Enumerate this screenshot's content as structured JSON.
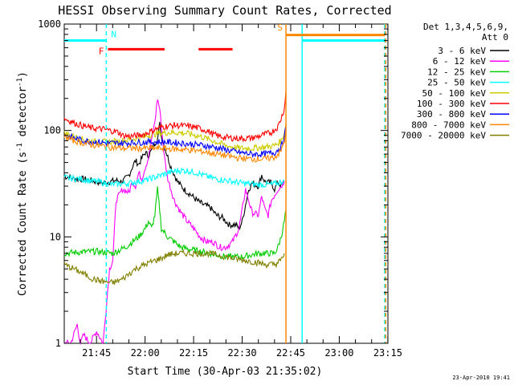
{
  "chart_data": {
    "type": "line",
    "title": "HESSI Observing Summary Count Rates, Corrected",
    "xlabel": "Start Time (30-Apr-03 21:35:02)",
    "ylabel": "Corrected Count Rate (s⁻¹ detector⁻¹)",
    "ylabel_parts": {
      "a": "Corrected Count Rate (s",
      "b": "-1",
      "c": " detector",
      "d": "-1",
      "e": ")"
    },
    "yscale": "log",
    "ylim": [
      1,
      1000
    ],
    "xlim_minutes": [
      0,
      100
    ],
    "x_ticks": [
      "21:45",
      "22:00",
      "22:15",
      "22:30",
      "22:45",
      "23:00",
      "23:15"
    ],
    "y_ticks": [
      "1",
      "10",
      "100",
      "1000"
    ],
    "legend_title": [
      "Det 1,3,4,5,6,9,",
      "Att 0"
    ],
    "legend_placement": "right",
    "series": [
      {
        "name": "3 - 6 keV",
        "color": "#000000",
        "points": [
          [
            0,
            37
          ],
          [
            2,
            36
          ],
          [
            4,
            35
          ],
          [
            6,
            35
          ],
          [
            8,
            34
          ],
          [
            10,
            33
          ],
          [
            12,
            32
          ],
          [
            14,
            33
          ],
          [
            16,
            34
          ],
          [
            18,
            33
          ],
          [
            20,
            38
          ],
          [
            21,
            45
          ],
          [
            22,
            52
          ],
          [
            23,
            48
          ],
          [
            24,
            55
          ],
          [
            25,
            62
          ],
          [
            26,
            58
          ],
          [
            27,
            65
          ],
          [
            28,
            75
          ],
          [
            29,
            90
          ],
          [
            29.5,
            115
          ],
          [
            30,
            88
          ],
          [
            31,
            70
          ],
          [
            33,
            45
          ],
          [
            35,
            33
          ],
          [
            37,
            28
          ],
          [
            39,
            25
          ],
          [
            41,
            22
          ],
          [
            43,
            20
          ],
          [
            45,
            19
          ],
          [
            47,
            16
          ],
          [
            49,
            15
          ],
          [
            51,
            13
          ],
          [
            53,
            13
          ],
          [
            54,
            12
          ],
          [
            55,
            14
          ],
          [
            56,
            20
          ],
          [
            57,
            28
          ],
          [
            58,
            32
          ],
          [
            60,
            30
          ],
          [
            61,
            38
          ],
          [
            62,
            33
          ],
          [
            64,
            32
          ],
          [
            65,
            28
          ],
          [
            66,
            33
          ],
          [
            67,
            30
          ],
          [
            68,
            33
          ]
        ]
      },
      {
        "name": "6 - 12 keV",
        "color": "#ff00ff",
        "points": [
          [
            0,
            1
          ],
          [
            2,
            1
          ],
          [
            4,
            1.5
          ],
          [
            5,
            1
          ],
          [
            6,
            1.2
          ],
          [
            8,
            1
          ],
          [
            10,
            1.3
          ],
          [
            12,
            1
          ],
          [
            14,
            5
          ],
          [
            15,
            6
          ],
          [
            16,
            22
          ],
          [
            18,
            28
          ],
          [
            20,
            26
          ],
          [
            21,
            33
          ],
          [
            22,
            30
          ],
          [
            23,
            40
          ],
          [
            24,
            35
          ],
          [
            25,
            45
          ],
          [
            26,
            55
          ],
          [
            27,
            80
          ],
          [
            28,
            120
          ],
          [
            28.8,
            200
          ],
          [
            29.5,
            160
          ],
          [
            30,
            110
          ],
          [
            31,
            55
          ],
          [
            32,
            35
          ],
          [
            34,
            22
          ],
          [
            36,
            17
          ],
          [
            38,
            14
          ],
          [
            40,
            12
          ],
          [
            42,
            10
          ],
          [
            44,
            9
          ],
          [
            46,
            9
          ],
          [
            48,
            8
          ],
          [
            50,
            8
          ],
          [
            52,
            9
          ],
          [
            54,
            12
          ],
          [
            55,
            18
          ],
          [
            56,
            28
          ],
          [
            57,
            22
          ],
          [
            58,
            17
          ],
          [
            60,
            16
          ],
          [
            61,
            24
          ],
          [
            62,
            18
          ],
          [
            63,
            16
          ],
          [
            64,
            22
          ],
          [
            66,
            28
          ],
          [
            67,
            30
          ],
          [
            68,
            33
          ]
        ]
      },
      {
        "name": "12 - 25 keV",
        "color": "#00cc00",
        "points": [
          [
            0,
            7
          ],
          [
            5,
            7.2
          ],
          [
            10,
            7.3
          ],
          [
            15,
            7
          ],
          [
            17,
            7.5
          ],
          [
            19,
            8
          ],
          [
            21,
            9
          ],
          [
            23,
            10
          ],
          [
            25,
            12
          ],
          [
            26,
            14
          ],
          [
            27,
            12
          ],
          [
            28,
            16
          ],
          [
            28.8,
            28
          ],
          [
            29.5,
            18
          ],
          [
            30,
            12
          ],
          [
            32,
            10
          ],
          [
            34,
            9
          ],
          [
            36,
            8
          ],
          [
            40,
            7.5
          ],
          [
            45,
            7
          ],
          [
            50,
            6.5
          ],
          [
            55,
            6.5
          ],
          [
            60,
            7
          ],
          [
            65,
            7
          ],
          [
            66,
            8
          ],
          [
            67,
            10
          ],
          [
            68,
            14
          ],
          [
            68.5,
            18
          ]
        ]
      },
      {
        "name": "25 - 50 keV",
        "color": "#00ffff",
        "points": [
          [
            0,
            36
          ],
          [
            5,
            35
          ],
          [
            10,
            33
          ],
          [
            15,
            31
          ],
          [
            20,
            32
          ],
          [
            25,
            34
          ],
          [
            30,
            38
          ],
          [
            32,
            40
          ],
          [
            35,
            42
          ],
          [
            38,
            42
          ],
          [
            41,
            40
          ],
          [
            44,
            37
          ],
          [
            47,
            35
          ],
          [
            50,
            34
          ],
          [
            55,
            32
          ],
          [
            60,
            31
          ],
          [
            64,
            31
          ],
          [
            66,
            32
          ],
          [
            67,
            33
          ],
          [
            68,
            34
          ]
        ]
      },
      {
        "name": "50 - 100 keV",
        "color": "#cccc00",
        "points": [
          [
            0,
            95
          ],
          [
            3,
            88
          ],
          [
            6,
            82
          ],
          [
            10,
            78
          ],
          [
            14,
            78
          ],
          [
            18,
            80
          ],
          [
            22,
            84
          ],
          [
            26,
            90
          ],
          [
            30,
            95
          ],
          [
            34,
            96
          ],
          [
            38,
            94
          ],
          [
            42,
            88
          ],
          [
            46,
            80
          ],
          [
            50,
            72
          ],
          [
            54,
            68
          ],
          [
            58,
            68
          ],
          [
            62,
            70
          ],
          [
            65,
            72
          ],
          [
            67,
            80
          ],
          [
            68,
            95
          ],
          [
            68.5,
            120
          ]
        ]
      },
      {
        "name": "100 - 300 keV",
        "color": "#ff0000",
        "points": [
          [
            0,
            130
          ],
          [
            2,
            122
          ],
          [
            4,
            115
          ],
          [
            6,
            110
          ],
          [
            8,
            106
          ],
          [
            10,
            104
          ],
          [
            12,
            103
          ],
          [
            14,
            100
          ],
          [
            16,
            98
          ],
          [
            17,
            95
          ],
          [
            18,
            90
          ],
          [
            20,
            88
          ],
          [
            22,
            89
          ],
          [
            24,
            91
          ],
          [
            26,
            96
          ],
          [
            28,
            102
          ],
          [
            30,
            108
          ],
          [
            32,
            110
          ],
          [
            34,
            112
          ],
          [
            36,
            111
          ],
          [
            38,
            110
          ],
          [
            40,
            108
          ],
          [
            42,
            104
          ],
          [
            44,
            100
          ],
          [
            46,
            92
          ],
          [
            48,
            88
          ],
          [
            50,
            86
          ],
          [
            52,
            85
          ],
          [
            55,
            84
          ],
          [
            58,
            85
          ],
          [
            60,
            88
          ],
          [
            62,
            92
          ],
          [
            64,
            96
          ],
          [
            66,
            108
          ],
          [
            67,
            130
          ],
          [
            68,
            160
          ],
          [
            68.5,
            240
          ]
        ]
      },
      {
        "name": "300 - 800 keV",
        "color": "#0000ff",
        "points": [
          [
            0,
            90
          ],
          [
            3,
            85
          ],
          [
            6,
            80
          ],
          [
            10,
            78
          ],
          [
            14,
            76
          ],
          [
            18,
            76
          ],
          [
            22,
            77
          ],
          [
            26,
            78
          ],
          [
            30,
            78
          ],
          [
            34,
            77
          ],
          [
            38,
            75
          ],
          [
            42,
            73
          ],
          [
            46,
            70
          ],
          [
            50,
            66
          ],
          [
            54,
            62
          ],
          [
            58,
            60
          ],
          [
            62,
            60
          ],
          [
            65,
            62
          ],
          [
            67,
            70
          ],
          [
            68,
            85
          ],
          [
            68.5,
            110
          ]
        ]
      },
      {
        "name": "800 - 7000 keV",
        "color": "#ff8800",
        "points": [
          [
            0,
            88
          ],
          [
            3,
            80
          ],
          [
            6,
            76
          ],
          [
            10,
            72
          ],
          [
            14,
            70
          ],
          [
            18,
            68
          ],
          [
            22,
            68
          ],
          [
            26,
            68
          ],
          [
            30,
            68
          ],
          [
            34,
            67
          ],
          [
            38,
            66
          ],
          [
            42,
            64
          ],
          [
            46,
            61
          ],
          [
            50,
            58
          ],
          [
            54,
            55
          ],
          [
            58,
            54
          ],
          [
            62,
            54
          ],
          [
            65,
            56
          ],
          [
            67,
            64
          ],
          [
            68,
            80
          ],
          [
            68.5,
            100
          ]
        ]
      },
      {
        "name": "7000 - 20000 keV",
        "color": "#808000",
        "points": [
          [
            0,
            5.5
          ],
          [
            3,
            5
          ],
          [
            6,
            4.5
          ],
          [
            9,
            4
          ],
          [
            12,
            3.8
          ],
          [
            15,
            3.7
          ],
          [
            18,
            4
          ],
          [
            20,
            4.5
          ],
          [
            22,
            5
          ],
          [
            25,
            5.5
          ],
          [
            28,
            6
          ],
          [
            30,
            6.3
          ],
          [
            32,
            6.8
          ],
          [
            35,
            7
          ],
          [
            38,
            7
          ],
          [
            41,
            7
          ],
          [
            44,
            7
          ],
          [
            47,
            6.8
          ],
          [
            50,
            6.5
          ],
          [
            53,
            6.2
          ],
          [
            56,
            6
          ],
          [
            59,
            5.8
          ],
          [
            62,
            5.5
          ],
          [
            65,
            5.5
          ],
          [
            67,
            6
          ],
          [
            68,
            7
          ]
        ]
      }
    ],
    "flag_markers": [
      {
        "label": "N",
        "color": "#00ffff",
        "x": 13,
        "kind": "dashed"
      },
      {
        "label": "F",
        "color": "#ff0000",
        "x": 13,
        "kind": "label"
      },
      {
        "label": "S",
        "color": "#ff8800",
        "x": 68.5,
        "kind": "solid"
      }
    ],
    "vertical_lines": [
      {
        "color": "#00ffff",
        "x": 13,
        "style": "dashed"
      },
      {
        "color": "#ff8800",
        "x": 68.5,
        "style": "solid"
      },
      {
        "color": "#00ffff",
        "x": 73.5,
        "style": "solid"
      },
      {
        "color": "#00ffff",
        "x": 99,
        "style": "dashed"
      },
      {
        "color": "#ff8800",
        "x": 99.3,
        "style": "dashed"
      }
    ],
    "flag_bars": [
      {
        "color": "#00ffff",
        "y": 700,
        "from": 0,
        "to": 13
      },
      {
        "color": "#ff0000",
        "y": 580,
        "from": 13.5,
        "to": 31
      },
      {
        "color": "#ff0000",
        "y": 580,
        "from": 41.5,
        "to": 52
      },
      {
        "color": "#ff8800",
        "y": 790,
        "from": 68.5,
        "to": 99
      },
      {
        "color": "#00ffff",
        "y": 700,
        "from": 73.5,
        "to": 99
      }
    ]
  },
  "footer": {
    "timestamp": "23-Apr-2010 19:41"
  }
}
